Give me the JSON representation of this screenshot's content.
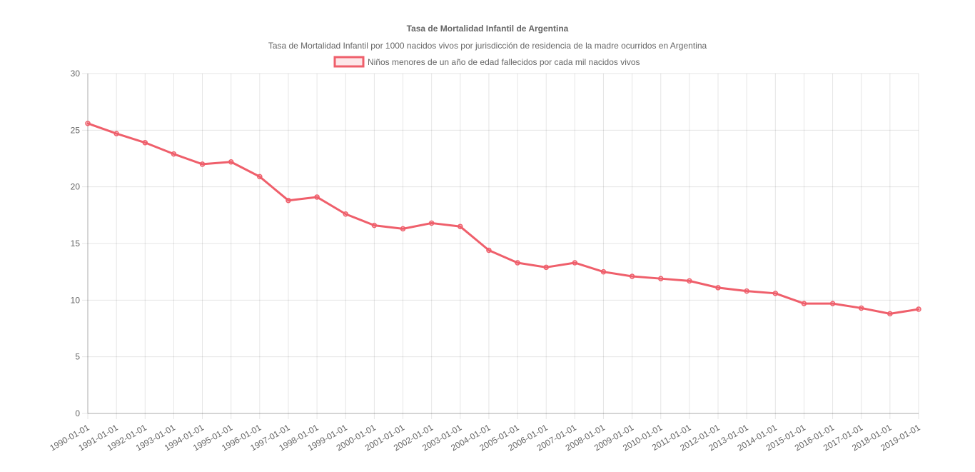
{
  "chart_data": {
    "type": "line",
    "title": "Tasa de Mortalidad Infantil de Argentina",
    "subtitle": "Tasa de Mortalidad Infantil por 1000 nacidos vivos por jurisdicción de residencia de la madre ocurridos en Argentina",
    "xlabel": "",
    "ylabel": "",
    "ylim": [
      0,
      30
    ],
    "y_ticks": [
      "0",
      "5",
      "10",
      "15",
      "20",
      "25",
      "30"
    ],
    "categories": [
      "1990-01-01",
      "1991-01-01",
      "1992-01-01",
      "1993-01-01",
      "1994-01-01",
      "1995-01-01",
      "1996-01-01",
      "1997-01-01",
      "1998-01-01",
      "1999-01-01",
      "2000-01-01",
      "2001-01-01",
      "2002-01-01",
      "2003-01-01",
      "2004-01-01",
      "2005-01-01",
      "2006-01-01",
      "2007-01-01",
      "2008-01-01",
      "2009-01-01",
      "2010-01-01",
      "2011-01-01",
      "2012-01-01",
      "2013-01-01",
      "2014-01-01",
      "2015-01-01",
      "2016-01-01",
      "2017-01-01",
      "2018-01-01",
      "2019-01-01"
    ],
    "series": [
      {
        "name": "Niños menores de un año de edad fallecidos por cada mil nacidos vivos",
        "color": "#ef5f6b",
        "values": [
          25.6,
          24.7,
          23.9,
          22.9,
          22.0,
          22.2,
          20.9,
          18.8,
          19.1,
          17.6,
          16.6,
          16.3,
          16.8,
          16.5,
          14.4,
          13.3,
          12.9,
          13.3,
          12.5,
          12.1,
          11.9,
          11.7,
          11.1,
          10.8,
          10.6,
          9.7,
          9.7,
          9.3,
          8.8,
          9.2
        ]
      }
    ],
    "grid": true,
    "legend_position": "top"
  }
}
